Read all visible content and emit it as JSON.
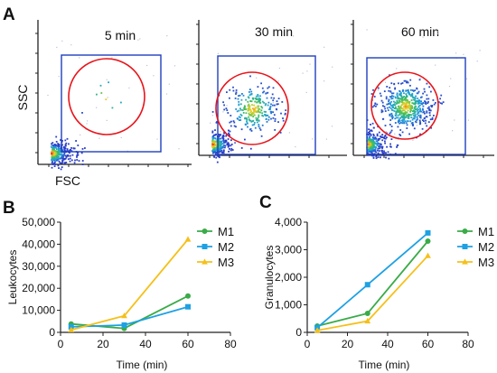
{
  "panels": {
    "a": "A",
    "b": "B",
    "c": "C"
  },
  "flow": {
    "y_label": "SSC",
    "x_label": "FSC",
    "plots": [
      {
        "label": "5 min",
        "events_in_gate": "sparse"
      },
      {
        "label": "30 min",
        "events_in_gate": "moderate"
      },
      {
        "label": "60 min",
        "events_in_gate": "dense"
      }
    ],
    "gate_rect_color": "#1f3fbf",
    "gate_circle_color": "#e8141b"
  },
  "chart_data": [
    {
      "type": "line",
      "panel": "B",
      "xlabel": "Time (min)",
      "ylabel": "Leukocytes",
      "xlim": [
        0,
        80
      ],
      "ylim": [
        0,
        50000
      ],
      "xticks": [
        0,
        20,
        40,
        60,
        80
      ],
      "yticks": [
        0,
        10000,
        20000,
        30000,
        40000,
        50000
      ],
      "ytick_labels": [
        "0",
        "10,000",
        "20,000",
        "30,000",
        "40,000",
        "50,000"
      ],
      "xtick_labels": [
        "0",
        "20",
        "40",
        "60",
        "80"
      ],
      "grid": false,
      "legend": "right",
      "series": [
        {
          "name": "M1",
          "color": "#3aab48",
          "marker": "circle",
          "x": [
            5,
            30,
            60
          ],
          "y": [
            3800,
            1800,
            16500
          ]
        },
        {
          "name": "M2",
          "color": "#1ea1e3",
          "marker": "square",
          "x": [
            5,
            30,
            60
          ],
          "y": [
            2500,
            3300,
            11600
          ]
        },
        {
          "name": "M3",
          "color": "#f5c01a",
          "marker": "triangle",
          "x": [
            5,
            30,
            60
          ],
          "y": [
            1100,
            7500,
            42200
          ]
        }
      ]
    },
    {
      "type": "line",
      "panel": "C",
      "xlabel": "Time (min)",
      "ylabel": "Granulocytes",
      "xlim": [
        0,
        80
      ],
      "ylim": [
        0,
        4000
      ],
      "xticks": [
        0,
        20,
        40,
        60,
        80
      ],
      "yticks": [
        0,
        1000,
        2000,
        3000,
        4000
      ],
      "ytick_labels": [
        "0",
        "1,000",
        "2,000",
        "3,000",
        "4,000"
      ],
      "xtick_labels": [
        "0",
        "20",
        "40",
        "60",
        "80"
      ],
      "grid": false,
      "legend": "right",
      "series": [
        {
          "name": "M1",
          "color": "#3aab48",
          "marker": "circle",
          "x": [
            5,
            30,
            60
          ],
          "y": [
            230,
            690,
            3310
          ]
        },
        {
          "name": "M2",
          "color": "#1ea1e3",
          "marker": "square",
          "x": [
            5,
            30,
            60
          ],
          "y": [
            170,
            1730,
            3610
          ]
        },
        {
          "name": "M3",
          "color": "#f5c01a",
          "marker": "triangle",
          "x": [
            5,
            30,
            60
          ],
          "y": [
            70,
            410,
            2780
          ]
        }
      ]
    }
  ]
}
